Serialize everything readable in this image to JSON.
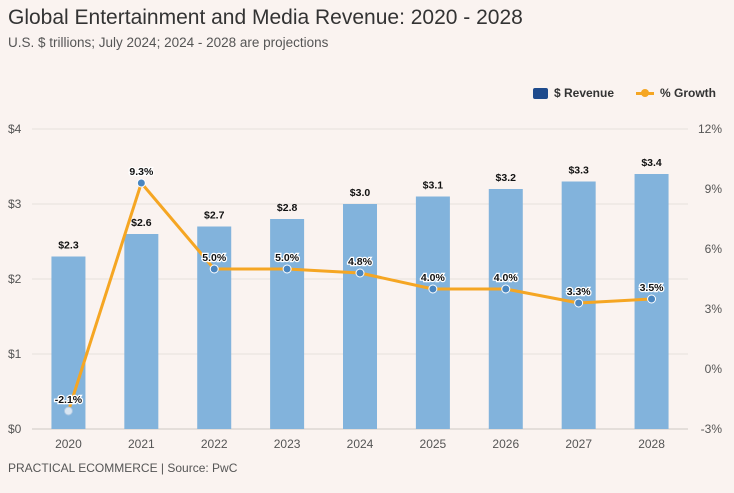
{
  "header": {
    "title": "Global Entertainment and Media Revenue: 2020 - 2028",
    "subtitle": "U.S. $ trillions; July 2024; 2024 - 2028 are projections"
  },
  "legend": {
    "revenue_label": "$ Revenue",
    "growth_label": "% Growth"
  },
  "footer": "PRACTICAL ECOMMERCE | Source: PwC",
  "colors": {
    "bar": "#82b3dc",
    "line": "#f5a623",
    "marker": "#4a86c0",
    "legend_bar": "#1e4a8c",
    "grid": "#e6e0dc"
  },
  "chart_data": {
    "type": "bar+line",
    "title": "Global Entertainment and Media Revenue: 2020 - 2028",
    "subtitle": "U.S. $ trillions; July 2024; 2024 - 2028 are projections",
    "categories": [
      "2020",
      "2021",
      "2022",
      "2023",
      "2024",
      "2025",
      "2026",
      "2027",
      "2028"
    ],
    "series": [
      {
        "name": "$ Revenue",
        "type": "bar",
        "axis": "left",
        "values": [
          2.3,
          2.6,
          2.7,
          2.8,
          3.0,
          3.1,
          3.2,
          3.3,
          3.4
        ],
        "labels": [
          "$2.3",
          "$2.6",
          "$2.7",
          "$2.8",
          "$3.0",
          "$3.1",
          "$3.2",
          "$3.3",
          "$3.4"
        ]
      },
      {
        "name": "% Growth",
        "type": "line",
        "axis": "right",
        "values": [
          -2.1,
          9.3,
          5.0,
          5.0,
          4.8,
          4.0,
          4.0,
          3.3,
          3.5
        ],
        "labels": [
          "-2.1%",
          "9.3%",
          "5.0%",
          "5.0%",
          "4.8%",
          "4.0%",
          "4.0%",
          "3.3%",
          "3.5%"
        ]
      }
    ],
    "left_axis": {
      "ylim": [
        0,
        4
      ],
      "ticks": [
        0,
        1,
        2,
        3,
        4
      ],
      "tick_labels": [
        "$0",
        "$1",
        "$2",
        "$3",
        "$4"
      ]
    },
    "right_axis": {
      "ylim": [
        -3,
        12
      ],
      "ticks": [
        -3,
        0,
        3,
        6,
        9,
        12
      ],
      "tick_labels": [
        "-3%",
        "0%",
        "3%",
        "6%",
        "9%",
        "12%"
      ]
    },
    "grid": true,
    "legend_position": "top-right"
  }
}
